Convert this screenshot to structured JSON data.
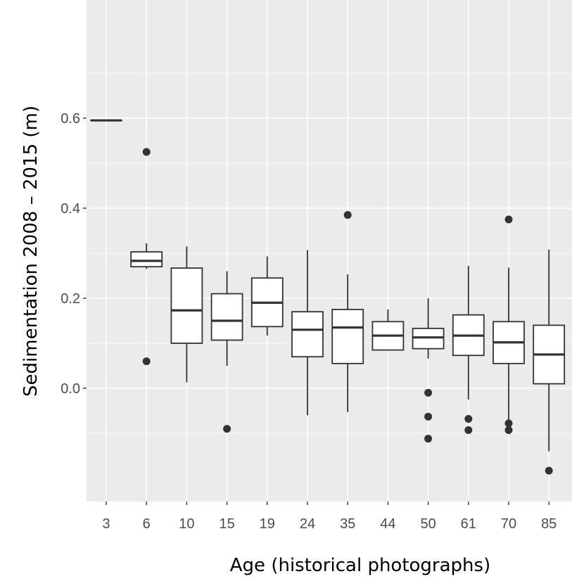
{
  "chart_data": {
    "type": "boxplot",
    "title": "",
    "xlabel": "Age (historical photographs)",
    "ylabel": "Sedimentation 2008 – 2015 (m)",
    "ylim": [
      -0.2,
      0.85
    ],
    "yticks": [
      0.0,
      0.2,
      0.4,
      0.6
    ],
    "ytick_labels": [
      "0.0",
      "0.2",
      "0.4",
      "0.6"
    ],
    "grid": true,
    "categories": [
      "3",
      "6",
      "10",
      "15",
      "19",
      "24",
      "35",
      "44",
      "50",
      "61",
      "70",
      "85"
    ],
    "boxes": [
      {
        "category": "3",
        "whisker_low": 0.595,
        "q1": 0.595,
        "median": 0.595,
        "q3": 0.595,
        "whisker_high": 0.595,
        "outliers": []
      },
      {
        "category": "6",
        "whisker_low": 0.265,
        "q1": 0.27,
        "median": 0.283,
        "q3": 0.303,
        "whisker_high": 0.322,
        "outliers": [
          0.525,
          0.06
        ]
      },
      {
        "category": "10",
        "whisker_low": 0.013,
        "q1": 0.1,
        "median": 0.173,
        "q3": 0.267,
        "whisker_high": 0.315,
        "outliers": []
      },
      {
        "category": "15",
        "whisker_low": 0.05,
        "q1": 0.107,
        "median": 0.15,
        "q3": 0.21,
        "whisker_high": 0.26,
        "outliers": [
          -0.09
        ]
      },
      {
        "category": "19",
        "whisker_low": 0.117,
        "q1": 0.137,
        "median": 0.19,
        "q3": 0.245,
        "whisker_high": 0.293,
        "outliers": []
      },
      {
        "category": "24",
        "whisker_low": -0.06,
        "q1": 0.07,
        "median": 0.13,
        "q3": 0.17,
        "whisker_high": 0.307,
        "outliers": []
      },
      {
        "category": "35",
        "whisker_low": -0.053,
        "q1": 0.055,
        "median": 0.135,
        "q3": 0.175,
        "whisker_high": 0.253,
        "outliers": [
          0.385
        ]
      },
      {
        "category": "44",
        "whisker_low": 0.085,
        "q1": 0.085,
        "median": 0.117,
        "q3": 0.148,
        "whisker_high": 0.175,
        "outliers": []
      },
      {
        "category": "50",
        "whisker_low": 0.066,
        "q1": 0.088,
        "median": 0.113,
        "q3": 0.133,
        "whisker_high": 0.2,
        "outliers": [
          -0.01,
          -0.063,
          -0.112
        ]
      },
      {
        "category": "61",
        "whisker_low": -0.025,
        "q1": 0.073,
        "median": 0.117,
        "q3": 0.163,
        "whisker_high": 0.272,
        "outliers": [
          -0.068,
          -0.093
        ]
      },
      {
        "category": "70",
        "whisker_low": -0.07,
        "q1": 0.055,
        "median": 0.102,
        "q3": 0.148,
        "whisker_high": 0.268,
        "outliers": [
          0.375,
          -0.078,
          -0.093
        ]
      },
      {
        "category": "85",
        "whisker_low": -0.14,
        "q1": 0.01,
        "median": 0.075,
        "q3": 0.14,
        "whisker_high": 0.308,
        "outliers": [
          -0.183
        ]
      }
    ]
  }
}
